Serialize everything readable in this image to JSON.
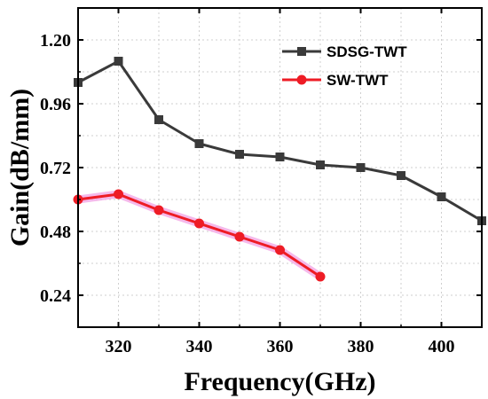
{
  "chart_data": {
    "type": "line",
    "title": "",
    "xlabel": "Frequency(GHz)",
    "ylabel": "Gain(dB/mm)",
    "xlim": [
      310,
      410
    ],
    "ylim": [
      0.12,
      1.32
    ],
    "xticks": [
      320,
      340,
      360,
      380,
      400
    ],
    "yticks": [
      0.24,
      0.48,
      0.72,
      0.96,
      1.2
    ],
    "ytick_labels": [
      "0.24",
      "0.48",
      "0.72",
      "0.96",
      "1.20"
    ],
    "grid": true,
    "legend_position": "top-right",
    "series": [
      {
        "name": "SDSG-TWT",
        "color": "#3a3a3a",
        "marker": "square",
        "x": [
          310,
          320,
          330,
          340,
          350,
          360,
          370,
          380,
          390,
          400,
          410
        ],
        "y": [
          1.04,
          1.12,
          0.9,
          0.81,
          0.77,
          0.76,
          0.73,
          0.72,
          0.69,
          0.61,
          0.52
        ]
      },
      {
        "name": "SW-TWT",
        "color": "#ee1c25",
        "marker": "circle",
        "x": [
          310,
          320,
          330,
          340,
          350,
          360,
          370
        ],
        "y": [
          0.6,
          0.62,
          0.56,
          0.51,
          0.46,
          0.41,
          0.31
        ]
      }
    ]
  }
}
